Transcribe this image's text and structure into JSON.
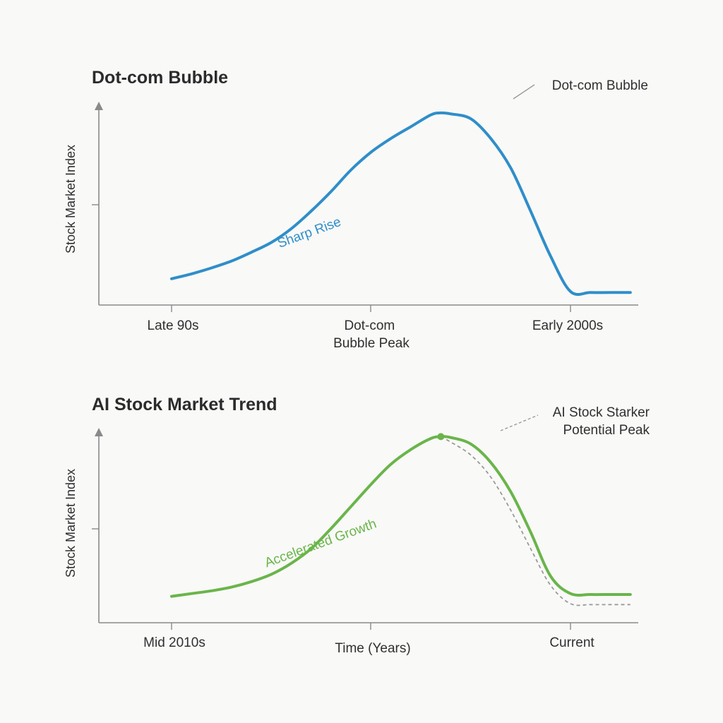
{
  "chart_data": [
    {
      "type": "line",
      "title": "Dot-com Bubble",
      "xlabel": "",
      "ylabel": "Stock Market Index",
      "x_ticks": [
        "Late 90s",
        "Dot-com Bubble Peak",
        "Early 2000s"
      ],
      "ylim": [
        0,
        100
      ],
      "y_tick_count": 1,
      "grid": false,
      "legend": "none",
      "series": [
        {
          "color": "#2f8ec9",
          "x": [
            0,
            0.1,
            0.2,
            0.3,
            0.4,
            0.5,
            0.6,
            0.7,
            0.8,
            0.9,
            1.0,
            1.1,
            1.2,
            1.3,
            1.35,
            1.4,
            1.5,
            1.6,
            1.7,
            1.8,
            1.9,
            2.0,
            2.1,
            2.2,
            2.3
          ],
          "y": [
            10.5,
            13,
            16,
            19.5,
            24,
            29,
            36,
            45,
            55,
            66,
            75,
            82,
            88,
            94,
            95,
            94.5,
            92,
            82,
            67,
            45,
            22,
            4,
            3.5,
            3.5,
            3.5
          ]
        }
      ],
      "annotations": [
        {
          "text": "Sharp Rise",
          "x": 0.72,
          "y": 46,
          "color": "#2f8ec9"
        },
        {
          "text": "Dot-com Bubble",
          "anchor_x": 1.35,
          "anchor_y": 95
        }
      ]
    },
    {
      "type": "line",
      "title": "AI Stock Market Trend",
      "xlabel": "Time (Years)",
      "ylabel": "Stock Market Index",
      "x_ticks": [
        "Mid 2010s",
        "",
        "Current"
      ],
      "ylim": [
        0,
        100
      ],
      "y_tick_count": 1,
      "grid": false,
      "legend": "none",
      "series": [
        {
          "color": "#6ab54a",
          "x": [
            0,
            0.1,
            0.2,
            0.3,
            0.4,
            0.5,
            0.6,
            0.7,
            0.8,
            0.9,
            1.0,
            1.1,
            1.2,
            1.3,
            1.35,
            1.4,
            1.5,
            1.6,
            1.7,
            1.8,
            1.9,
            2.0,
            2.1,
            2.2,
            2.3
          ],
          "y": [
            9,
            10.5,
            12,
            14,
            17,
            21,
            27,
            35,
            46,
            58,
            70,
            81,
            89,
            95,
            96,
            95.5,
            92,
            82,
            66,
            44,
            20,
            10.5,
            10,
            10,
            10
          ]
        },
        {
          "color": "#9a9a9a",
          "dashed": true,
          "x": [
            1.35,
            1.4,
            1.5,
            1.6,
            1.7,
            1.8,
            1.9,
            2.0,
            2.1,
            2.2,
            2.3
          ],
          "y": [
            96,
            93,
            86,
            74,
            56,
            35,
            15,
            5,
            4.5,
            4.5,
            4.5
          ]
        }
      ],
      "annotations": [
        {
          "text": "Accelerated Growth",
          "x": 0.68,
          "y": 28,
          "color": "#6ab54a"
        },
        {
          "text": "AI Stock Starker",
          "anchor_x": 1.35,
          "anchor_y": 96
        },
        {
          "text": "Potential Peak",
          "anchor_x": 1.35,
          "anchor_y": 96
        }
      ]
    }
  ]
}
